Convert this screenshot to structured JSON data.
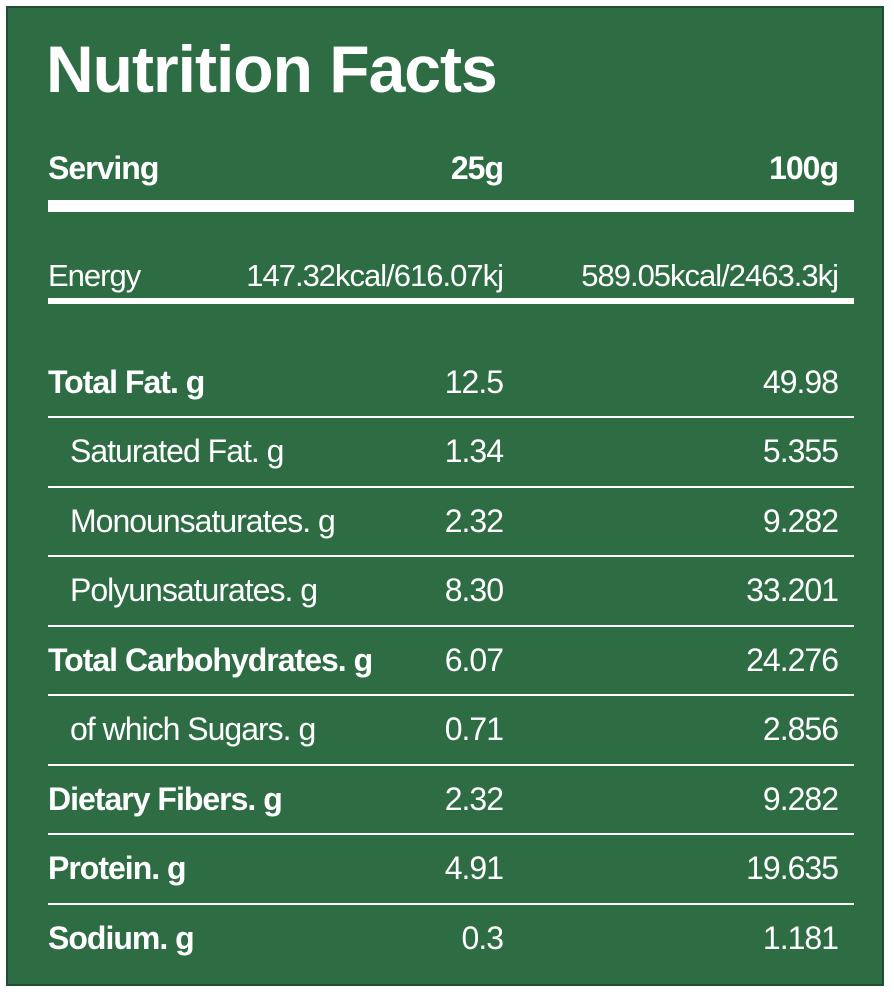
{
  "title": "Nutrition Facts",
  "header": {
    "label": "Serving",
    "col1": "25g",
    "col2": "100g"
  },
  "energy": {
    "label": "Energy",
    "col1": "147.32kcal/616.07kj",
    "col2": "589.05kcal/2463.3kj"
  },
  "rows": [
    {
      "label": "Total Fat. g",
      "col1": "12.5",
      "col2": "49.98",
      "level": "main"
    },
    {
      "label": "Saturated Fat. g",
      "col1": "1.34",
      "col2": "5.355",
      "level": "sub"
    },
    {
      "label": "Monounsaturates. g",
      "col1": "2.32",
      "col2": "9.282",
      "level": "sub"
    },
    {
      "label": "Polyunsaturates. g",
      "col1": "8.30",
      "col2": "33.201",
      "level": "sub"
    },
    {
      "label": "Total Carbohydrates. g",
      "col1": "6.07",
      "col2": "24.276",
      "level": "main"
    },
    {
      "label": "of which Sugars. g",
      "col1": "0.71",
      "col2": "2.856",
      "level": "sub"
    },
    {
      "label": "Dietary Fibers. g",
      "col1": "2.32",
      "col2": "9.282",
      "level": "main"
    },
    {
      "label": "Protein. g",
      "col1": "4.91",
      "col2": "19.635",
      "level": "main"
    },
    {
      "label": "Sodium. g",
      "col1": "0.3",
      "col2": "1.181",
      "level": "main"
    }
  ],
  "colors": {
    "background": "#2e6c44",
    "text": "#ffffff"
  }
}
